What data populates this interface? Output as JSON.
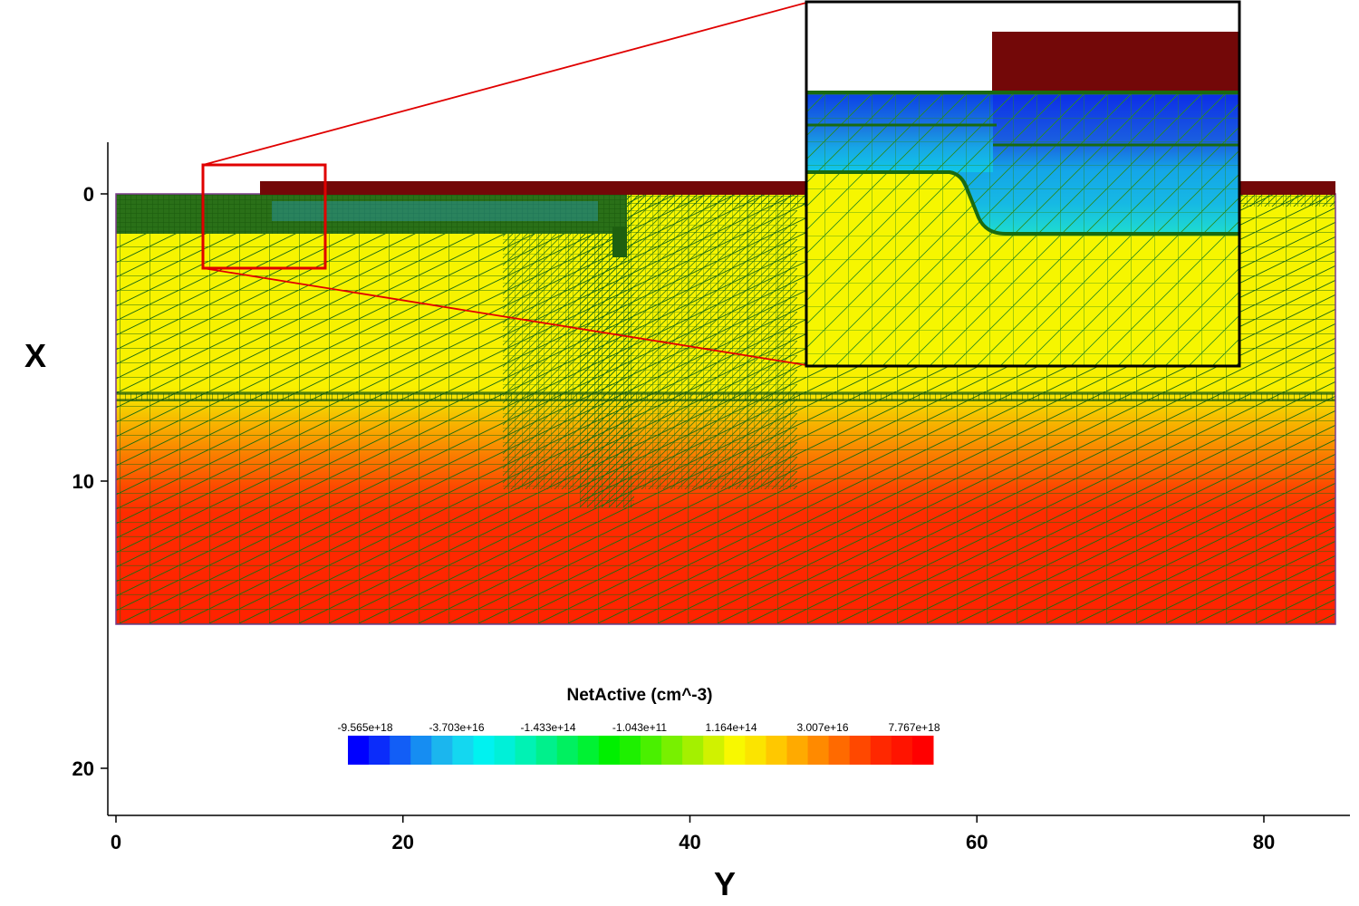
{
  "plot": {
    "x_axis_title": "X",
    "y_axis_title": "Y",
    "x_range": [
      -2,
      22
    ],
    "y_range": [
      0,
      85
    ],
    "x_ticks": [
      {
        "value": 0,
        "label": "0"
      },
      {
        "value": 10,
        "label": "10"
      },
      {
        "value": 20,
        "label": "20"
      }
    ],
    "y_ticks": [
      {
        "value": 0,
        "label": "0"
      },
      {
        "value": 20,
        "label": "20"
      },
      {
        "value": 40,
        "label": "40"
      },
      {
        "value": 60,
        "label": "60"
      },
      {
        "value": 80,
        "label": "80"
      }
    ]
  },
  "colorbar": {
    "title": "NetActive (cm^-3)",
    "labels": [
      "-9.565e+18",
      "-3.703e+16",
      "-1.433e+14",
      "-1.043e+11",
      "1.164e+14",
      "3.007e+16",
      "7.767e+18"
    ],
    "colors": [
      "#0000ff",
      "#0b2cfa",
      "#125ef6",
      "#168df2",
      "#1bb6ee",
      "#14d7f0",
      "#00f2f0",
      "#00f0d8",
      "#00f2b4",
      "#00f08c",
      "#00f060",
      "#00f233",
      "#00f000",
      "#1ef000",
      "#4af000",
      "#78f000",
      "#a4f000",
      "#d0f200",
      "#f8f800",
      "#fbe400",
      "#ffc800",
      "#ffaa00",
      "#ff8a00",
      "#ff6a00",
      "#ff4800",
      "#ff2800",
      "#ff1400",
      "#ff0000"
    ]
  },
  "colors": {
    "electrode": "#730808",
    "mesh": "#1f6b10",
    "highlight": "#e00000"
  }
}
